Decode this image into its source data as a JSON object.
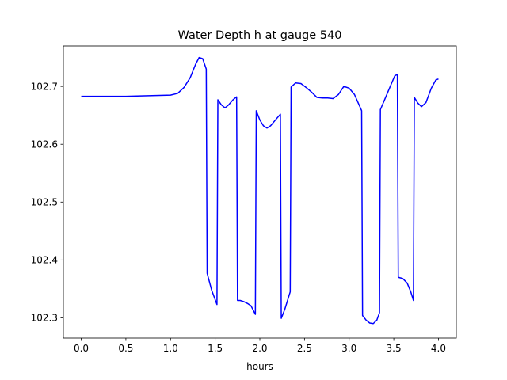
{
  "chart_data": {
    "type": "line",
    "title": "Water Depth h at gauge 540",
    "xlabel": "hours",
    "ylabel": "",
    "xlim": [
      -0.2,
      4.2
    ],
    "ylim": [
      102.265,
      102.77
    ],
    "xticks": [
      0.0,
      0.5,
      1.0,
      1.5,
      2.0,
      2.5,
      3.0,
      3.5,
      4.0
    ],
    "xtick_labels": [
      "0.0",
      "0.5",
      "1.0",
      "1.5",
      "2.0",
      "2.5",
      "3.0",
      "3.5",
      "4.0"
    ],
    "yticks": [
      102.3,
      102.4,
      102.5,
      102.6,
      102.7
    ],
    "ytick_labels": [
      "102.3",
      "102.4",
      "102.5",
      "102.6",
      "102.7"
    ],
    "grid": false,
    "series": [
      {
        "color": "#0000ff",
        "x": [
          0.0,
          0.5,
          1.0,
          1.08,
          1.15,
          1.22,
          1.28,
          1.32,
          1.36,
          1.4,
          1.41,
          1.46,
          1.52,
          1.53,
          1.57,
          1.61,
          1.65,
          1.7,
          1.74,
          1.75,
          1.78,
          1.82,
          1.86,
          1.9,
          1.95,
          1.96,
          2.0,
          2.04,
          2.08,
          2.12,
          2.18,
          2.23,
          2.24,
          2.28,
          2.34,
          2.35,
          2.4,
          2.46,
          2.52,
          2.58,
          2.64,
          2.7,
          2.76,
          2.82,
          2.88,
          2.94,
          3.0,
          3.06,
          3.14,
          3.15,
          3.19,
          3.23,
          3.27,
          3.31,
          3.34,
          3.35,
          3.4,
          3.46,
          3.51,
          3.54,
          3.55,
          3.6,
          3.65,
          3.69,
          3.72,
          3.73,
          3.77,
          3.81,
          3.86,
          3.92,
          3.97,
          4.0
        ],
        "y": [
          102.683,
          102.683,
          102.685,
          102.688,
          102.698,
          102.715,
          102.738,
          102.75,
          102.748,
          102.73,
          102.377,
          102.348,
          102.323,
          102.677,
          102.668,
          102.663,
          102.668,
          102.677,
          102.682,
          102.33,
          102.33,
          102.328,
          102.325,
          102.321,
          102.306,
          102.658,
          102.642,
          102.632,
          102.628,
          102.632,
          102.643,
          102.652,
          102.299,
          102.315,
          102.345,
          102.699,
          102.706,
          102.705,
          102.698,
          102.69,
          102.681,
          102.68,
          102.68,
          102.679,
          102.686,
          102.7,
          102.697,
          102.686,
          102.658,
          102.304,
          102.296,
          102.291,
          102.29,
          102.296,
          102.309,
          102.66,
          102.678,
          102.7,
          102.718,
          102.721,
          102.37,
          102.368,
          102.36,
          102.345,
          102.33,
          102.681,
          102.671,
          102.665,
          102.672,
          102.697,
          102.711,
          102.713
        ]
      }
    ]
  }
}
